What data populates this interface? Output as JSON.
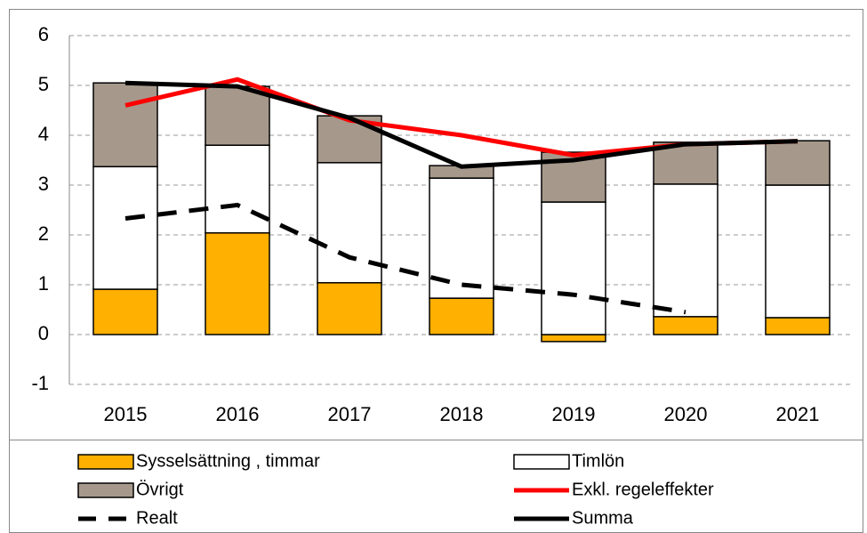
{
  "chart_data": {
    "type": "bar",
    "categories": [
      "2015",
      "2016",
      "2017",
      "2018",
      "2019",
      "2020",
      "2021"
    ],
    "ylim": [
      -1,
      6
    ],
    "yticks": [
      -1,
      0,
      1,
      2,
      3,
      4,
      5,
      6
    ],
    "grid": true,
    "series": [
      {
        "name": "Sysselsättning , timmar",
        "type": "bar",
        "color": "#ffb000",
        "values": [
          0.91,
          2.04,
          1.04,
          0.73,
          -0.14,
          0.36,
          0.34
        ]
      },
      {
        "name": "Timlön",
        "type": "bar",
        "color": "#ffffff",
        "values": [
          2.46,
          1.76,
          2.41,
          2.41,
          2.66,
          2.66,
          2.66
        ]
      },
      {
        "name": "Övrigt",
        "type": "bar",
        "color": "#a6998c",
        "values": [
          1.68,
          1.18,
          0.94,
          0.25,
          1.0,
          0.84,
          0.89
        ]
      },
      {
        "name": "Exkl. regeleffekter",
        "type": "line",
        "color": "#ff0000",
        "dashed": false,
        "values": [
          4.6,
          5.12,
          4.3,
          4.0,
          3.6,
          3.82,
          3.88
        ]
      },
      {
        "name": "Realt",
        "type": "line",
        "color": "#000000",
        "dashed": true,
        "values": [
          2.33,
          2.6,
          1.55,
          1.0,
          0.8,
          0.45,
          null
        ]
      },
      {
        "name": "Summa",
        "type": "line",
        "color": "#000000",
        "dashed": false,
        "values": [
          5.05,
          4.98,
          4.35,
          3.37,
          3.5,
          3.82,
          3.88
        ]
      }
    ]
  }
}
